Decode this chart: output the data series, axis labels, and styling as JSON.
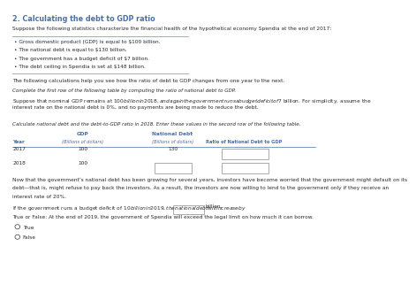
{
  "title": "2. Calculating the debt to GDP ratio",
  "title_color": "#4a6fa5",
  "intro_text": "Suppose the following statistics characterize the financial health of the hypothetical economy Spendia at the end of 2017:",
  "bullet_points": [
    "Gross domestic product (GDP) is equal to $100 billion.",
    "The national debt is equal to $130 billion.",
    "The government has a budget deficit of $7 billion.",
    "The debt ceiling in Spendia is set at $148 billion."
  ],
  "para1": "The following calculations help you see how the ratio of debt to GDP changes from one year to the next.",
  "para2": "Complete the first row of the following table by computing the ratio of national debt to GDP.",
  "para3_line1": "Suppose that nominal GDP remains at $100 billion in 2018, and again the government runs a budget deficit of $7 billion. For simplicity, assume the",
  "para3_line2": "interest rate on the national debt is 0%, and no payments are being made to reduce the debt.",
  "para4": "Calculate national debt and the debt-to-GDP ratio in 2018. Enter these values in the second row of the following table.",
  "col1_header": "GDP",
  "col2_header": "National Debt",
  "col1_sub": "(Billions of dollars)",
  "col2_sub": "(Billions of dollars)",
  "col3_header": "Ratio of National Debt to GDP",
  "year_label": "Year",
  "row1_year": "2017",
  "row1_gdp": "100",
  "row1_debt": "130",
  "row2_year": "2018",
  "row2_gdp": "100",
  "para5_line1": "Now that the government’s national debt has been growing for several years, investors have become worried that the government might default on its",
  "para5_line2": "debt—that is, might refuse to pay back the investors. As a result, the investors are now willing to lend to the government only if they receive an",
  "para5_line3": "interest rate of 20%.",
  "para6": "If the government runs a budget deficit of $10 billion in 2019, the national debt will increase by $",
  "para6_suffix": "billion.",
  "para7": "True or False: At the end of 2019, the government of Spendia will exceed the legal limit on how much it can borrow.",
  "radio_true": "True",
  "radio_false": "False",
  "line_color": "#c8a96e",
  "header_color": "#4a6fa5",
  "text_color": "#2a2a2a",
  "italic_color": "#2a2a2a",
  "bg_color": "#ffffff",
  "title_fs": 5.8,
  "body_fs": 4.2,
  "italic_fs": 4.0
}
